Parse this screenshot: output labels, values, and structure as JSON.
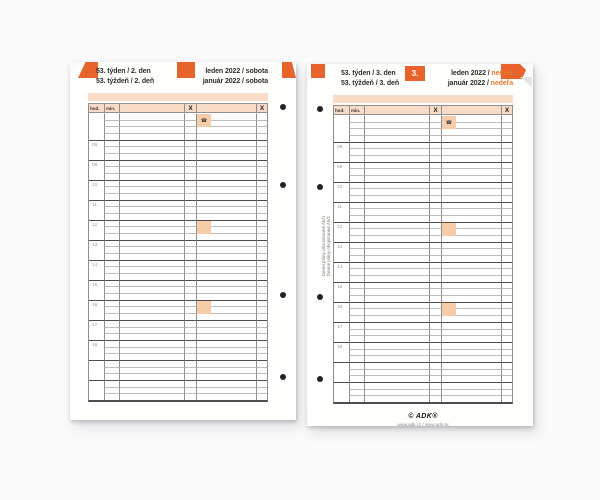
{
  "left_page": {
    "week_line1": "53. týden / 2. den",
    "week_line2": "53. týždeň / 2. deň",
    "date_line1": "leden 2022 / sobota",
    "date_line2": "január 2022 / sobota"
  },
  "right_page": {
    "week_line1": "53. týden / 3. den",
    "week_line2": "53. týždeň / 3. deň",
    "day_tab": "3.",
    "date_line1_prefix": "leden 2022 / ",
    "date_line1_day": "neděle",
    "date_line2_prefix": "január 2022 / ",
    "date_line2_day": "nedeľa",
    "side_text_line1": "Denní plány oboustranné A5/1",
    "side_text_line2": "Denné plány obojstranné A5/1",
    "footer_logo": "© ADK®",
    "footer_url": "www.adk.cz / www.adk.sk"
  },
  "grid": {
    "hod_label": "hod.",
    "min_label": "min.",
    "x_label": "X",
    "phone_icon": "☎",
    "hours": [
      "08",
      "09",
      "10",
      "11",
      "12",
      "13",
      "14",
      "15",
      "16",
      "17",
      "18"
    ],
    "highlight_hours": [
      "12",
      "16"
    ],
    "pre_rows": 4,
    "rows_per_hour": 3,
    "trailing_blocks": 2,
    "trailing_rows": 3
  },
  "colors": {
    "orange_tab": "#E7632B",
    "orange_text": "#E87831",
    "salmon_band": "#F8DCC8",
    "highlight_cell": "#F7CDA9",
    "thin_line": "#bcbcbc",
    "thick_line": "#4d4d4d",
    "grid_border": "#8f8f8f",
    "hour_label": "#9b9b9b",
    "binder_hole": "#232325"
  }
}
